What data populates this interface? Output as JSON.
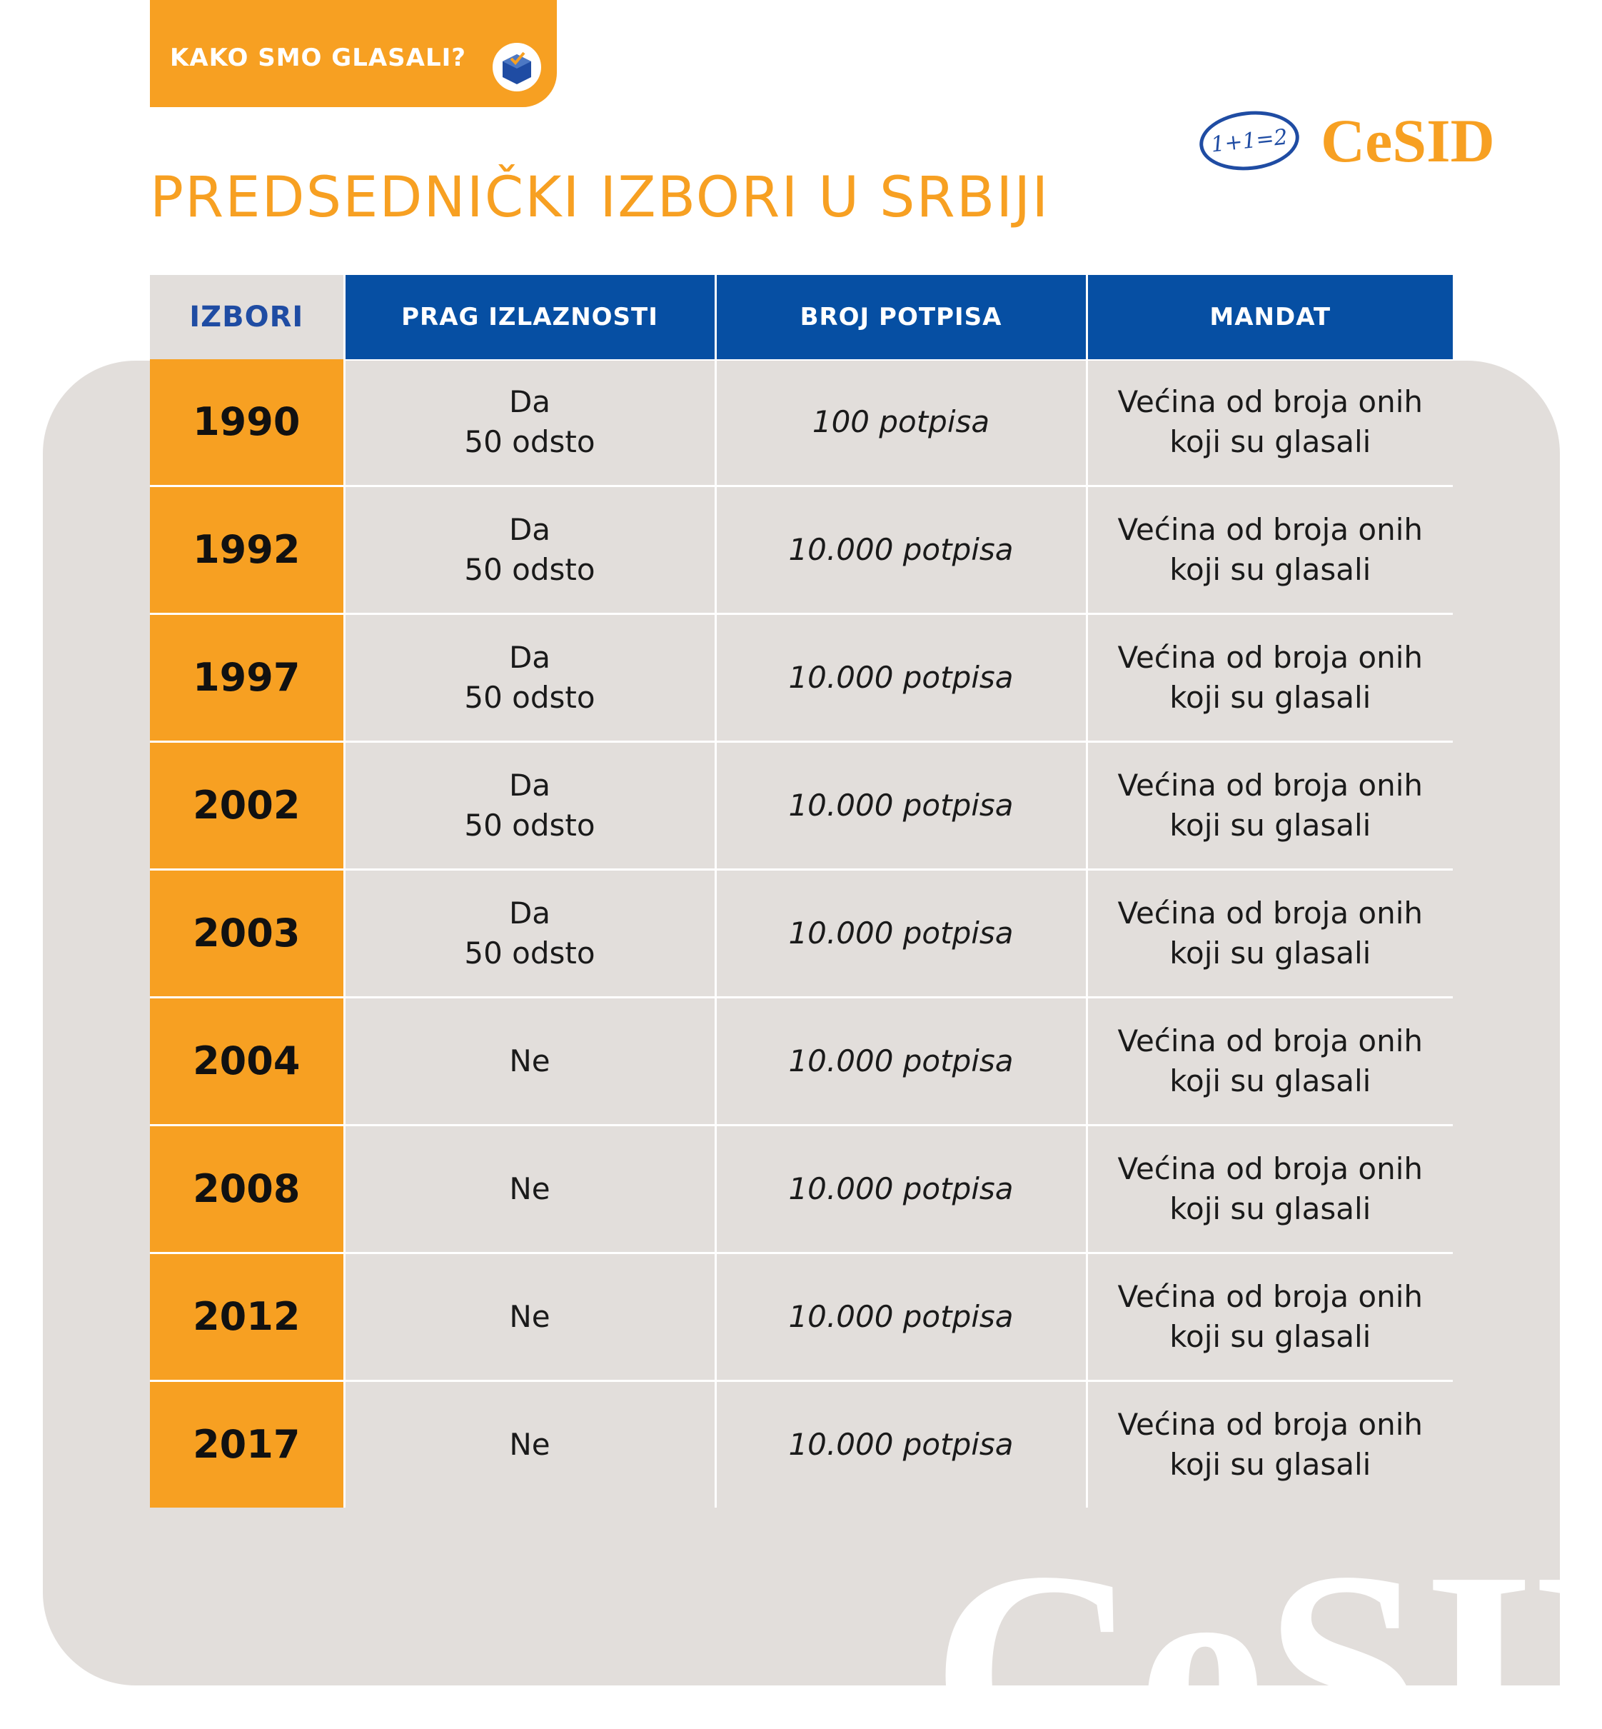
{
  "header": {
    "tag_label": "KAKO SMO GLASALI?",
    "tag_icon": "ballot-box-icon",
    "logo_badge": "1+1=2",
    "logo_word": "CeSID",
    "title": "PREDSEDNIČKI IZBORI U SRBIJI",
    "watermark": "CeSID"
  },
  "colors": {
    "orange": "#F7A022",
    "blue": "#064FA3",
    "panel": "#E2DEDB"
  },
  "table": {
    "headers": [
      "IZBORI",
      "PRAG IZLAZNOSTI",
      "BROJ POTPISA",
      "MANDAT"
    ],
    "rows": [
      {
        "year": "1990",
        "prag": [
          "Da",
          "50 odsto"
        ],
        "potpisi": "100 potpisa",
        "mandat": [
          "Većina od broja onih",
          "koji su glasali"
        ]
      },
      {
        "year": "1992",
        "prag": [
          "Da",
          "50 odsto"
        ],
        "potpisi": "10.000 potpisa",
        "mandat": [
          "Većina od broja onih",
          "koji su glasali"
        ]
      },
      {
        "year": "1997",
        "prag": [
          "Da",
          "50 odsto"
        ],
        "potpisi": "10.000 potpisa",
        "mandat": [
          "Većina od broja onih",
          "koji su glasali"
        ]
      },
      {
        "year": "2002",
        "prag": [
          "Da",
          "50 odsto"
        ],
        "potpisi": "10.000 potpisa",
        "mandat": [
          "Većina od broja onih",
          "koji su glasali"
        ]
      },
      {
        "year": "2003",
        "prag": [
          "Da",
          "50 odsto"
        ],
        "potpisi": "10.000 potpisa",
        "mandat": [
          "Većina od broja onih",
          "koji su glasali"
        ]
      },
      {
        "year": "2004",
        "prag": [
          "Ne"
        ],
        "potpisi": "10.000 potpisa",
        "mandat": [
          "Većina od broja onih",
          "koji su glasali"
        ]
      },
      {
        "year": "2008",
        "prag": [
          "Ne"
        ],
        "potpisi": "10.000 potpisa",
        "mandat": [
          "Većina od broja onih",
          "koji su glasali"
        ]
      },
      {
        "year": "2012",
        "prag": [
          "Ne"
        ],
        "potpisi": "10.000 potpisa",
        "mandat": [
          "Većina od broja onih",
          "koji su glasali"
        ]
      },
      {
        "year": "2017",
        "prag": [
          "Ne"
        ],
        "potpisi": "10.000 potpisa",
        "mandat": [
          "Većina od broja onih",
          "koji su glasali"
        ]
      }
    ]
  }
}
